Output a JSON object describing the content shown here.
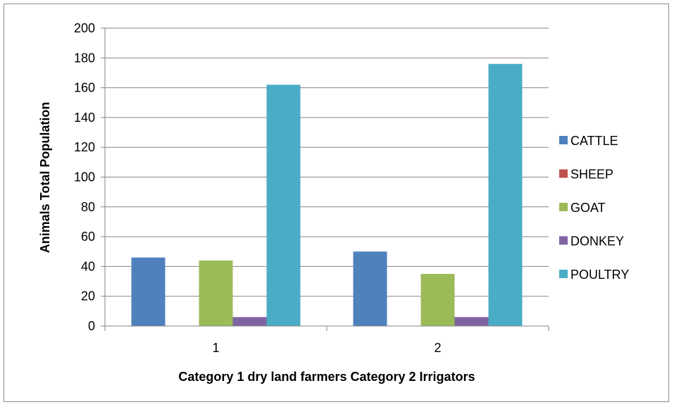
{
  "chart_data": {
    "type": "bar",
    "categories": [
      "1",
      "2"
    ],
    "series": [
      {
        "name": "CATTLE",
        "values": [
          46,
          50
        ],
        "color": "#4f81bd"
      },
      {
        "name": "SHEEP",
        "values": [
          0,
          0
        ],
        "color": "#c0504d"
      },
      {
        "name": "GOAT",
        "values": [
          44,
          35
        ],
        "color": "#9bbb59"
      },
      {
        "name": "DONKEY",
        "values": [
          6,
          6
        ],
        "color": "#8064a2"
      },
      {
        "name": "POULTRY",
        "values": [
          162,
          176
        ],
        "color": "#4bacc6"
      }
    ],
    "xlabel": "Category 1 dry land farmers Category 2 Irrigators",
    "ylabel": "Animals Total Population",
    "ylim": [
      0,
      200
    ],
    "yticks": [
      0,
      20,
      40,
      60,
      80,
      100,
      120,
      140,
      160,
      180,
      200
    ],
    "grid": true,
    "legend_position": "right"
  }
}
